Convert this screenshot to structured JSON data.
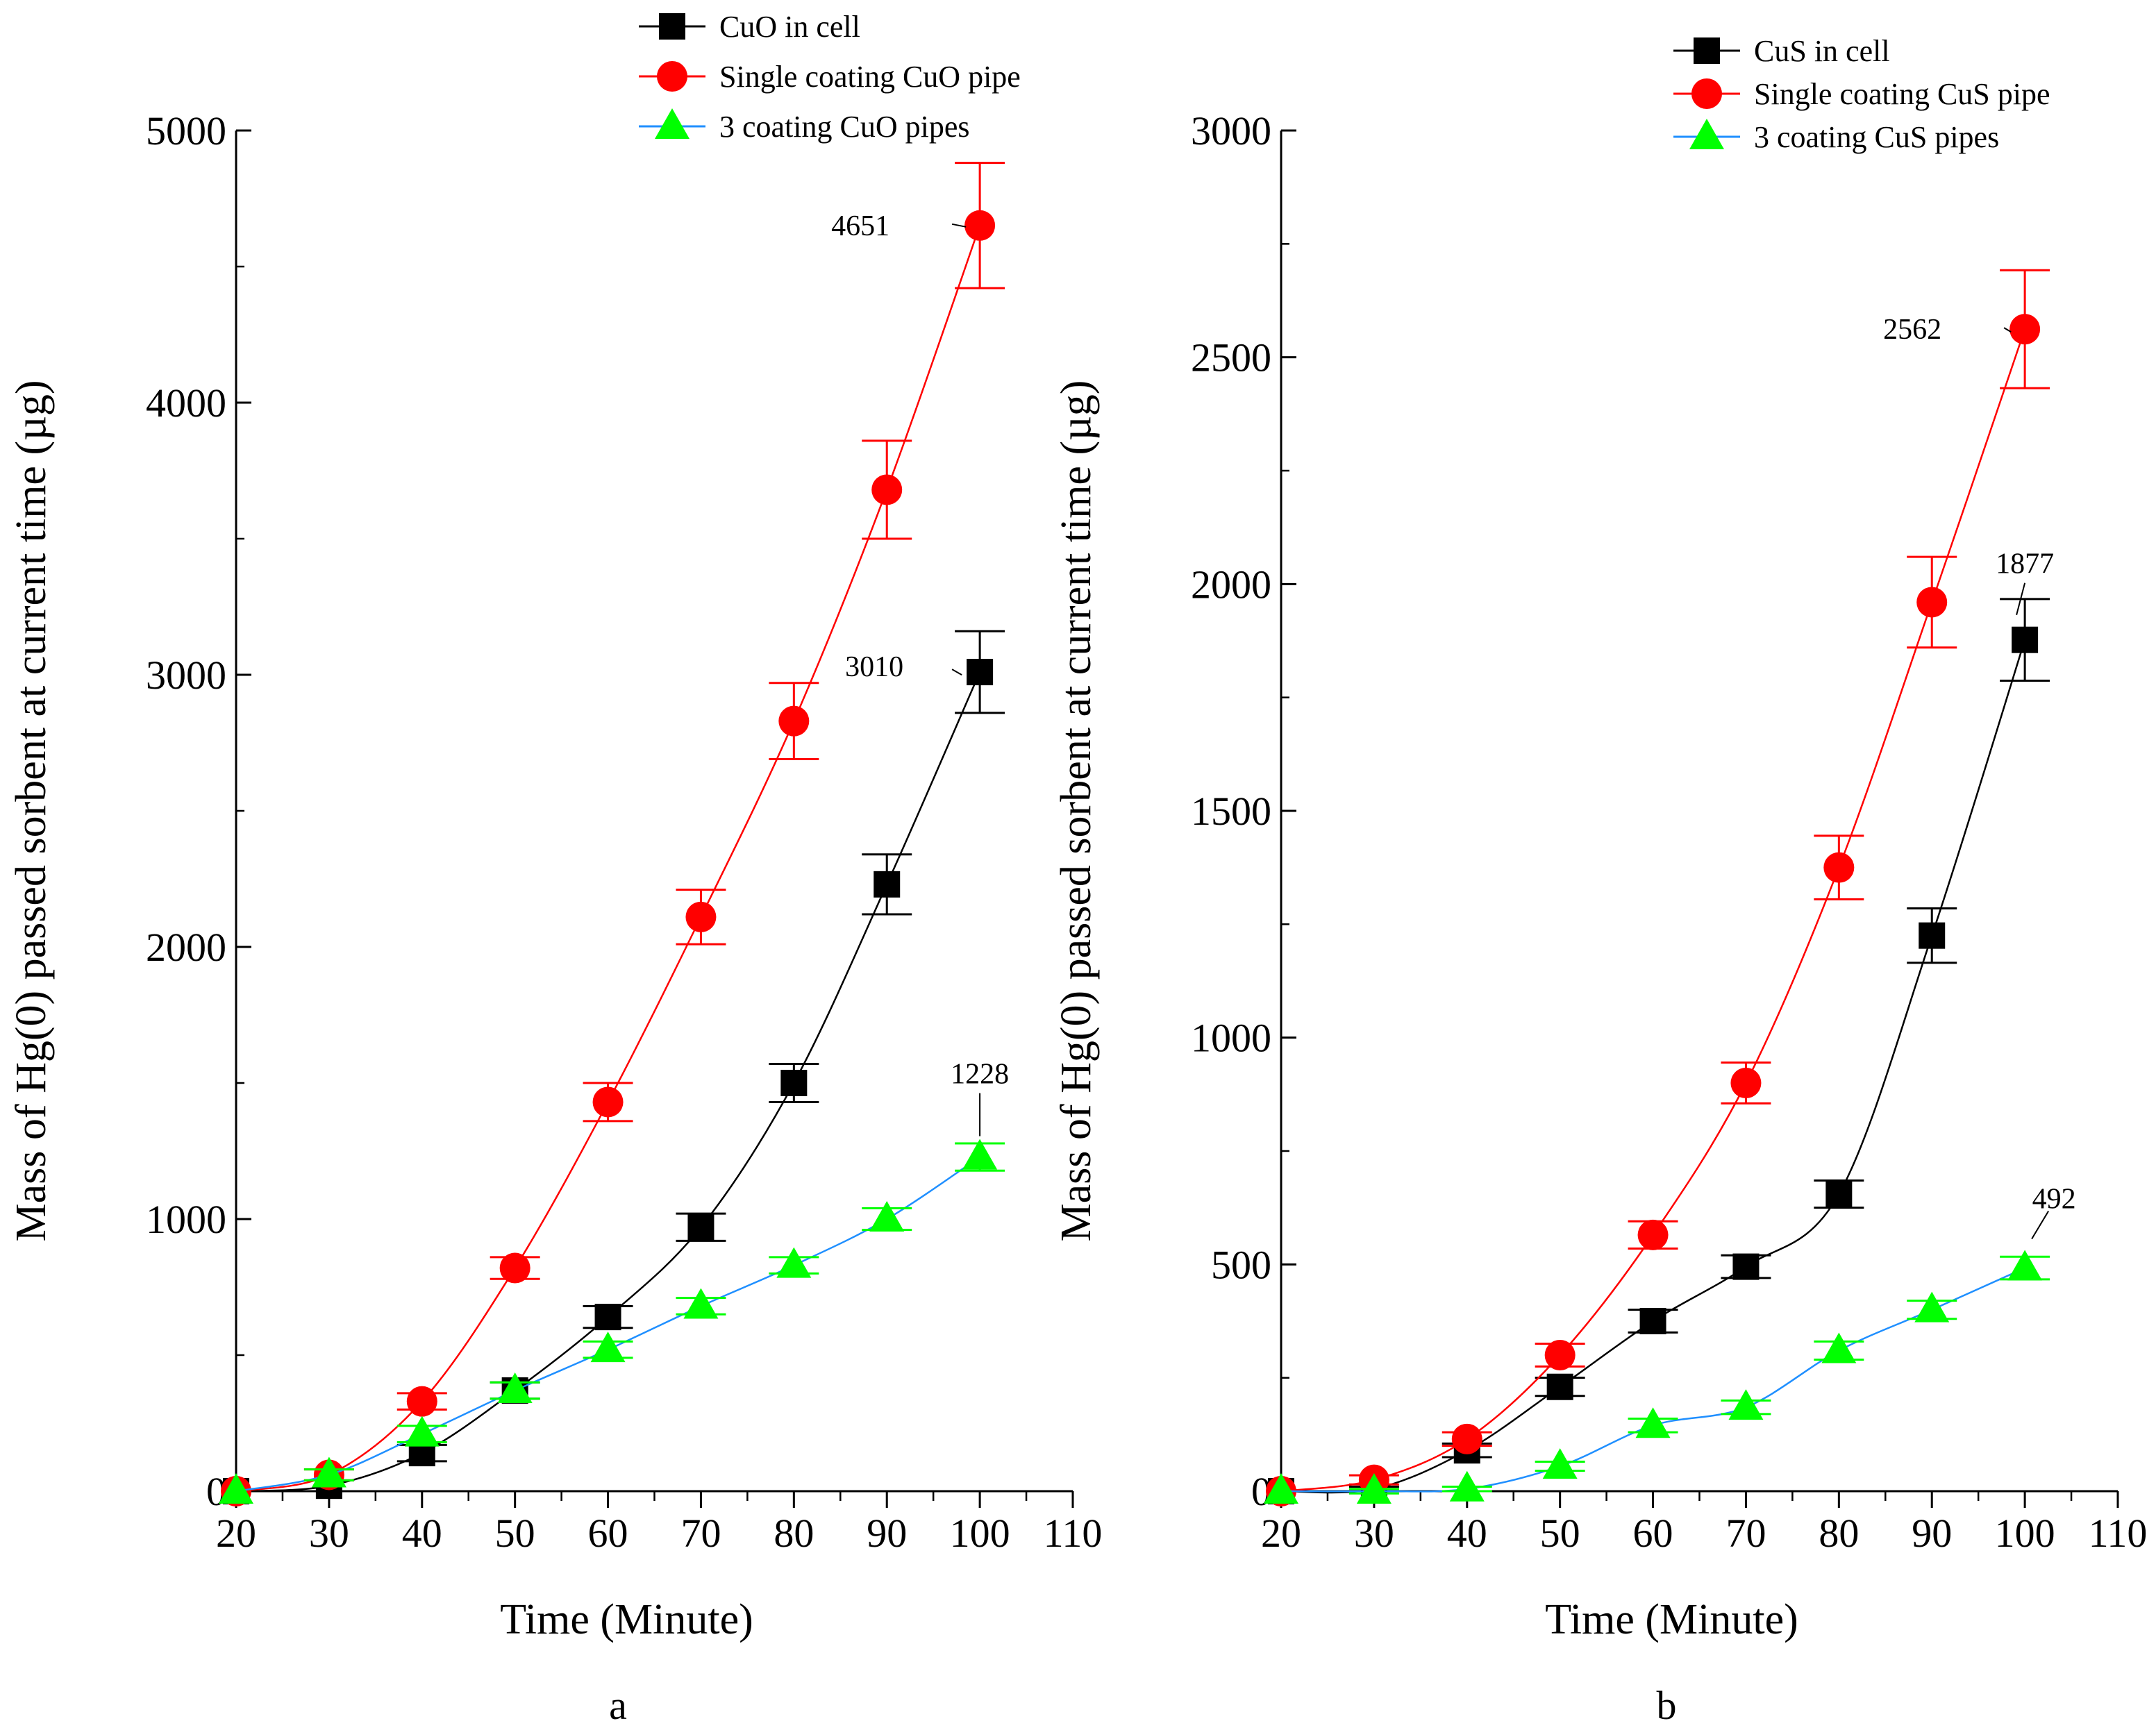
{
  "figure": {
    "panel_labels": [
      "a",
      "b"
    ]
  },
  "chart_data": [
    {
      "type": "line",
      "panel": "a",
      "xlabel": "Time (Minute)",
      "ylabel": "Mass of Hg(0) passed sorbent at current time (µg)",
      "xlim": [
        20,
        110
      ],
      "ylim": [
        0,
        5000
      ],
      "xticks": [
        20,
        30,
        40,
        50,
        60,
        70,
        80,
        90,
        100,
        110
      ],
      "yticks": [
        0,
        1000,
        2000,
        3000,
        4000,
        5000
      ],
      "grid": false,
      "legend_position": "top-center",
      "x": [
        20,
        30,
        40,
        50,
        60,
        70,
        80,
        90,
        100
      ],
      "series": [
        {
          "name": "CuO in cell",
          "color": "#000000",
          "marker": "square",
          "values": [
            0,
            20,
            140,
            370,
            640,
            970,
            1500,
            2230,
            3010
          ],
          "errors": [
            0,
            20,
            30,
            30,
            40,
            50,
            70,
            110,
            150
          ]
        },
        {
          "name": "Single coating CuO pipe",
          "color": "#ff0000",
          "marker": "circle",
          "values": [
            0,
            60,
            330,
            820,
            1430,
            2110,
            2830,
            3680,
            4651
          ],
          "errors": [
            0,
            20,
            30,
            40,
            70,
            100,
            140,
            180,
            230
          ]
        },
        {
          "name": "3 coating CuO pipes",
          "color": "#00ff00",
          "line_color": "#1f8fff",
          "marker": "triangle",
          "values": [
            0,
            60,
            210,
            370,
            520,
            680,
            830,
            1000,
            1228
          ],
          "errors": [
            0,
            20,
            30,
            30,
            30,
            30,
            30,
            40,
            50
          ]
        }
      ],
      "annotations": [
        {
          "series": 1,
          "label": "4651"
        },
        {
          "series": 0,
          "label": "3010"
        },
        {
          "series": 2,
          "label": "1228"
        }
      ]
    },
    {
      "type": "line",
      "panel": "b",
      "xlabel": "Time (Minute)",
      "ylabel": "Mass of Hg(0) passed sorbent at current time (µg)",
      "xlim": [
        20,
        110
      ],
      "ylim": [
        0,
        3000
      ],
      "xticks": [
        20,
        30,
        40,
        50,
        60,
        70,
        80,
        90,
        100,
        110
      ],
      "yticks": [
        0,
        500,
        1000,
        1500,
        2000,
        2500,
        3000
      ],
      "grid": false,
      "legend_position": "top-center",
      "x": [
        20,
        30,
        40,
        50,
        60,
        70,
        80,
        90,
        100
      ],
      "series": [
        {
          "name": "CuS in cell",
          "color": "#000000",
          "marker": "square",
          "values": [
            0,
            5,
            90,
            230,
            375,
            495,
            655,
            1225,
            1877
          ],
          "errors": [
            0,
            5,
            15,
            20,
            25,
            25,
            30,
            60,
            90
          ]
        },
        {
          "name": "Single coating CuS pipe",
          "color": "#ff0000",
          "marker": "circle",
          "values": [
            0,
            25,
            115,
            300,
            565,
            900,
            1375,
            1960,
            2562
          ],
          "errors": [
            0,
            10,
            15,
            25,
            30,
            45,
            70,
            100,
            130
          ]
        },
        {
          "name": "3 coating CuS pipes",
          "color": "#00ff00",
          "line_color": "#1f8fff",
          "marker": "triangle",
          "values": [
            0,
            0,
            5,
            55,
            145,
            185,
            310,
            400,
            492
          ],
          "errors": [
            0,
            5,
            5,
            10,
            15,
            15,
            20,
            20,
            25
          ]
        }
      ],
      "annotations": [
        {
          "series": 1,
          "label": "2562"
        },
        {
          "series": 0,
          "label": "1877"
        },
        {
          "series": 2,
          "label": "492"
        }
      ]
    }
  ]
}
